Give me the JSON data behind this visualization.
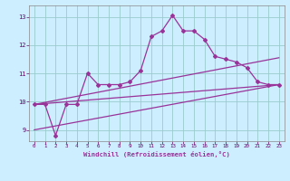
{
  "title": "",
  "xlabel": "Windchill (Refroidissement éolien,°C)",
  "ylabel": "",
  "background_color": "#cceeff",
  "grid_color": "#99cccc",
  "line_color": "#993399",
  "x_hours": [
    0,
    1,
    2,
    3,
    4,
    5,
    6,
    7,
    8,
    9,
    10,
    11,
    12,
    13,
    14,
    15,
    16,
    17,
    18,
    19,
    20,
    21,
    22,
    23
  ],
  "series1": [
    9.9,
    9.9,
    8.8,
    9.9,
    9.9,
    11.0,
    10.6,
    10.6,
    10.6,
    10.7,
    11.1,
    12.3,
    12.5,
    13.05,
    12.5,
    12.5,
    12.2,
    11.6,
    11.5,
    11.4,
    11.2,
    10.7,
    10.6,
    10.6
  ],
  "line2_x": [
    0,
    23
  ],
  "line2_y": [
    9.9,
    10.6
  ],
  "line3_x": [
    0,
    23
  ],
  "line3_y": [
    9.9,
    11.55
  ],
  "line4_x": [
    0,
    23
  ],
  "line4_y": [
    9.0,
    10.6
  ],
  "ylim": [
    8.6,
    13.4
  ],
  "xlim": [
    -0.5,
    23.5
  ],
  "yticks": [
    9,
    10,
    11,
    12,
    13
  ],
  "xticks": [
    0,
    1,
    2,
    3,
    4,
    5,
    6,
    7,
    8,
    9,
    10,
    11,
    12,
    13,
    14,
    15,
    16,
    17,
    18,
    19,
    20,
    21,
    22,
    23
  ]
}
